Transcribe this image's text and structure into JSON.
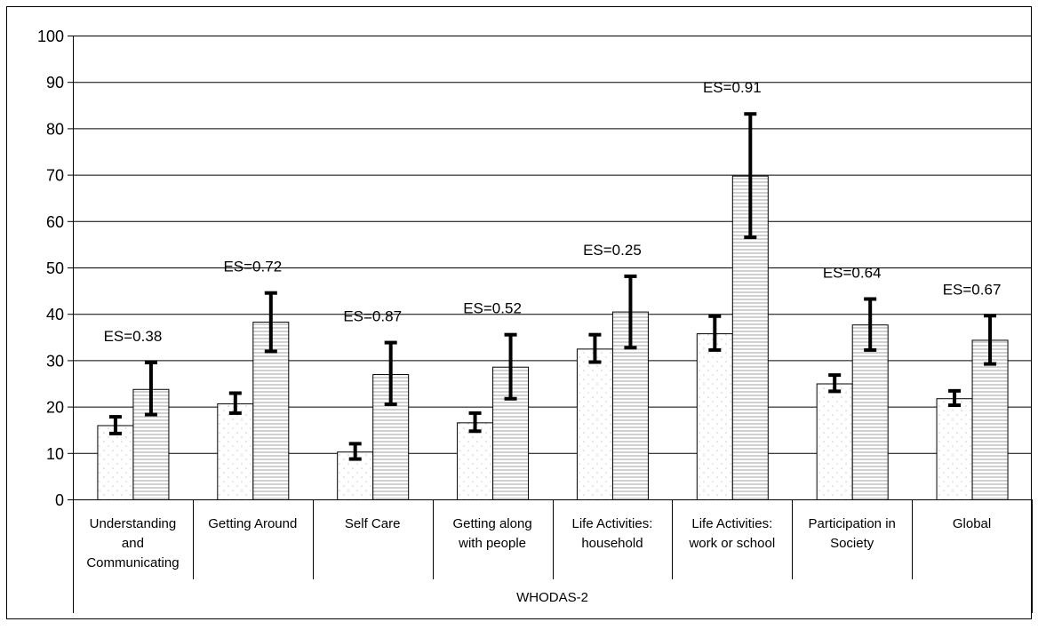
{
  "chart_data": {
    "type": "bar",
    "title": "",
    "xlabel": "WHODAS-2",
    "ylabel": "",
    "ylim": [
      0,
      100
    ],
    "yticks": [
      0,
      10,
      20,
      30,
      40,
      50,
      60,
      70,
      80,
      90,
      100
    ],
    "grid": true,
    "legend": "none",
    "categories": [
      [
        "Understanding",
        "and",
        "Communicating"
      ],
      [
        "Getting Around"
      ],
      [
        "Self Care"
      ],
      [
        "Getting along",
        "with people"
      ],
      [
        "Life Activities:",
        "household"
      ],
      [
        "Life Activities:",
        "work or school"
      ],
      [
        "Participation in",
        "Society"
      ],
      [
        "Global"
      ]
    ],
    "series": [
      {
        "pattern": "dotted",
        "values": [
          16.0,
          20.7,
          10.3,
          16.6,
          32.5,
          35.8,
          25.0,
          21.8
        ],
        "err_low": [
          14.2,
          18.6,
          8.7,
          14.7,
          29.6,
          32.2,
          23.3,
          20.3
        ],
        "err_high": [
          17.8,
          22.9,
          12.0,
          18.6,
          35.5,
          39.5,
          26.8,
          23.4
        ]
      },
      {
        "pattern": "horizontal-lines",
        "values": [
          23.8,
          38.3,
          27.0,
          28.6,
          40.5,
          69.8,
          37.7,
          34.4
        ],
        "err_low": [
          18.3,
          31.9,
          20.5,
          21.7,
          32.7,
          56.5,
          32.2,
          29.2
        ],
        "err_high": [
          29.5,
          44.5,
          33.8,
          35.5,
          48.1,
          83.1,
          43.2,
          39.6
        ]
      }
    ],
    "annotations": [
      "ES=0.38",
      "ES=0.72",
      "ES=0.87",
      "ES=0.52",
      "ES=0.25",
      "ES=0.91",
      "ES=0.64",
      "ES=0.67"
    ],
    "colors": {
      "bar_fill": "#ffffff",
      "dot_color": "#c8c8c8",
      "stripe_color": "#a0a0a0",
      "axis": "#000000",
      "grid": "#000000",
      "error_bar": "#000000"
    }
  }
}
